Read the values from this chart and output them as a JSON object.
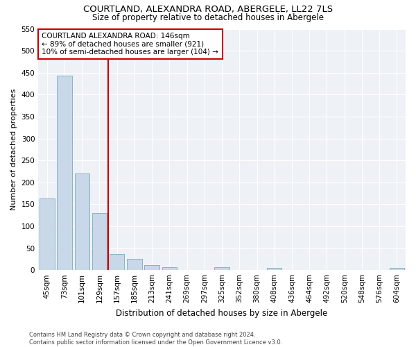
{
  "title": "COURTLAND, ALEXANDRA ROAD, ABERGELE, LL22 7LS",
  "subtitle": "Size of property relative to detached houses in Abergele",
  "xlabel": "Distribution of detached houses by size in Abergele",
  "ylabel": "Number of detached properties",
  "footnote1": "Contains HM Land Registry data © Crown copyright and database right 2024.",
  "footnote2": "Contains public sector information licensed under the Open Government Licence v3.0.",
  "categories": [
    "45sqm",
    "73sqm",
    "101sqm",
    "129sqm",
    "157sqm",
    "185sqm",
    "213sqm",
    "241sqm",
    "269sqm",
    "297sqm",
    "325sqm",
    "352sqm",
    "380sqm",
    "408sqm",
    "436sqm",
    "464sqm",
    "492sqm",
    "520sqm",
    "548sqm",
    "576sqm",
    "604sqm"
  ],
  "values": [
    163,
    443,
    220,
    130,
    37,
    26,
    11,
    6,
    0,
    0,
    6,
    0,
    0,
    5,
    0,
    0,
    0,
    0,
    0,
    0,
    5
  ],
  "bar_color": "#c8d8e8",
  "bar_edge_color": "#7aaabb",
  "vline_x": 3.5,
  "vline_color": "#cc0000",
  "annotation_title": "COURTLAND ALEXANDRA ROAD: 146sqm",
  "annotation_line1": "← 89% of detached houses are smaller (921)",
  "annotation_line2": "10% of semi-detached houses are larger (104) →",
  "annotation_box_color": "#cc0000",
  "ylim": [
    0,
    550
  ],
  "yticks": [
    0,
    50,
    100,
    150,
    200,
    250,
    300,
    350,
    400,
    450,
    500,
    550
  ],
  "title_fontsize": 9.5,
  "subtitle_fontsize": 8.5,
  "ylabel_fontsize": 8,
  "xlabel_fontsize": 8.5,
  "tick_fontsize": 7.5,
  "annotation_fontsize": 7.5,
  "footnote_fontsize": 6,
  "bg_color": "#eef2f7"
}
